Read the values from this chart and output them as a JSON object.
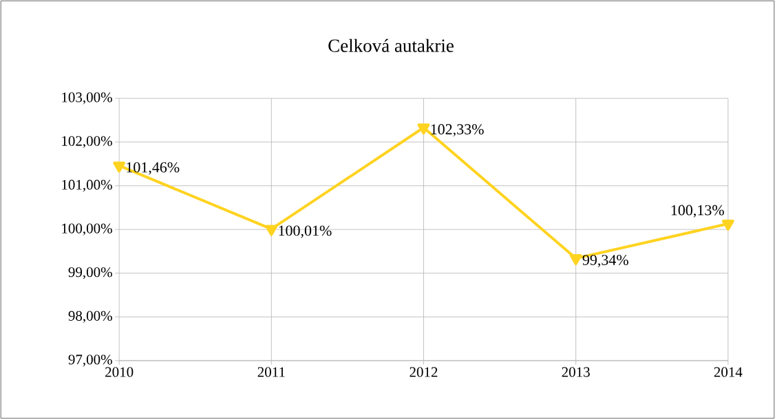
{
  "chart_data": {
    "type": "line",
    "title": "Celková autakrie",
    "categories": [
      "2010",
      "2011",
      "2012",
      "2013",
      "2014"
    ],
    "series": [
      {
        "color": "#ffd320",
        "values": [
          101.46,
          100.01,
          102.33,
          99.34,
          100.13
        ],
        "value_labels": [
          "101,46%",
          "100,01%",
          "102,33%",
          "99,34%",
          "100,13%"
        ]
      }
    ],
    "ylim": [
      97,
      103
    ],
    "yticks": [
      {
        "value": 97,
        "label": "97,00%"
      },
      {
        "value": 98,
        "label": "98,00%"
      },
      {
        "value": 99,
        "label": "99,00%"
      },
      {
        "value": 100,
        "label": "100,00%"
      },
      {
        "value": 101,
        "label": "101,00%"
      },
      {
        "value": 102,
        "label": "102,00%"
      },
      {
        "value": 103,
        "label": "103,00%"
      }
    ],
    "grid": true,
    "marker": "triangle",
    "line_style": "solid"
  }
}
